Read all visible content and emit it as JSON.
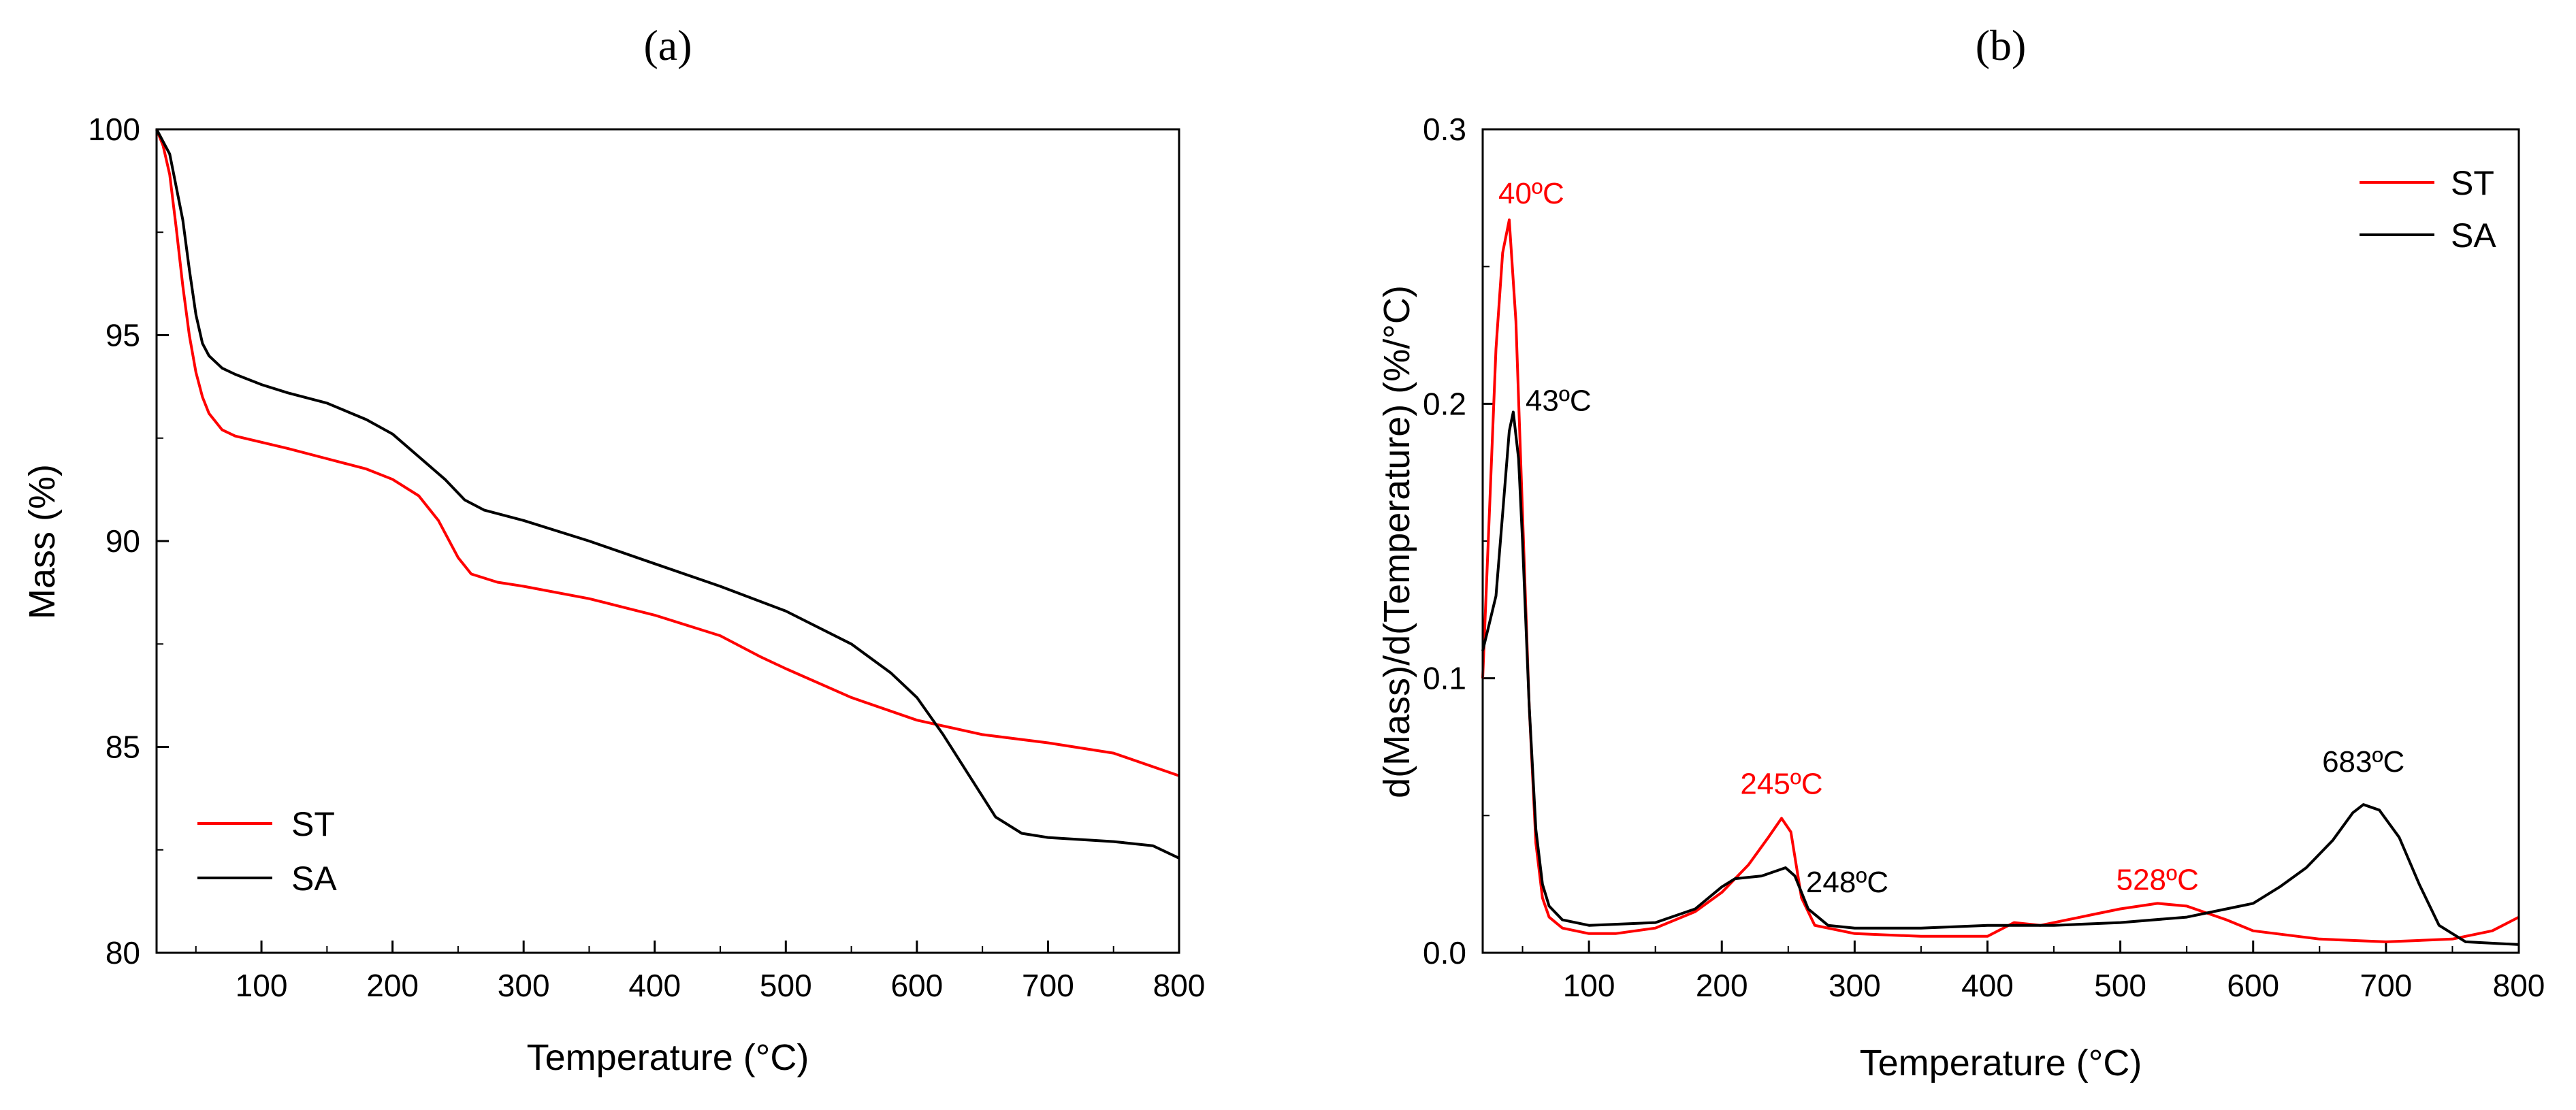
{
  "colors": {
    "ST": "#ff0000",
    "SA": "#000000",
    "axis": "#000000"
  },
  "chart_data": [
    {
      "id": "a",
      "panel_label": "(a)",
      "type": "line",
      "title": "",
      "xlabel": "Temperature (°C)",
      "ylabel": "Mass (%)",
      "xlim": [
        20,
        800
      ],
      "ylim": [
        80,
        100
      ],
      "xticks": [
        100,
        200,
        300,
        400,
        500,
        600,
        700,
        800
      ],
      "yticks": [
        80,
        85,
        90,
        95,
        100
      ],
      "legend_position": "bottom-left",
      "series": [
        {
          "name": "ST",
          "color": "#ff0000",
          "points": [
            [
              20,
              100
            ],
            [
              25,
              99.6
            ],
            [
              30,
              98.9
            ],
            [
              35,
              97.6
            ],
            [
              40,
              96.2
            ],
            [
              45,
              95
            ],
            [
              50,
              94.1
            ],
            [
              55,
              93.5
            ],
            [
              60,
              93.1
            ],
            [
              70,
              92.7
            ],
            [
              80,
              92.55
            ],
            [
              100,
              92.4
            ],
            [
              120,
              92.25
            ],
            [
              150,
              92
            ],
            [
              180,
              91.75
            ],
            [
              200,
              91.5
            ],
            [
              220,
              91.1
            ],
            [
              235,
              90.5
            ],
            [
              250,
              89.6
            ],
            [
              260,
              89.2
            ],
            [
              280,
              89
            ],
            [
              300,
              88.9
            ],
            [
              350,
              88.6
            ],
            [
              400,
              88.2
            ],
            [
              450,
              87.7
            ],
            [
              480,
              87.2
            ],
            [
              500,
              86.9
            ],
            [
              550,
              86.2
            ],
            [
              600,
              85.65
            ],
            [
              650,
              85.3
            ],
            [
              700,
              85.1
            ],
            [
              750,
              84.85
            ],
            [
              800,
              84.3
            ]
          ]
        },
        {
          "name": "SA",
          "color": "#000000",
          "points": [
            [
              20,
              100
            ],
            [
              30,
              99.4
            ],
            [
              40,
              97.8
            ],
            [
              45,
              96.6
            ],
            [
              50,
              95.5
            ],
            [
              55,
              94.8
            ],
            [
              60,
              94.5
            ],
            [
              70,
              94.2
            ],
            [
              80,
              94.05
            ],
            [
              100,
              93.8
            ],
            [
              120,
              93.6
            ],
            [
              150,
              93.35
            ],
            [
              180,
              92.95
            ],
            [
              200,
              92.6
            ],
            [
              220,
              92.05
            ],
            [
              240,
              91.5
            ],
            [
              255,
              91
            ],
            [
              270,
              90.75
            ],
            [
              300,
              90.5
            ],
            [
              350,
              90
            ],
            [
              400,
              89.45
            ],
            [
              450,
              88.9
            ],
            [
              500,
              88.3
            ],
            [
              550,
              87.5
            ],
            [
              580,
              86.8
            ],
            [
              600,
              86.2
            ],
            [
              620,
              85.3
            ],
            [
              640,
              84.3
            ],
            [
              660,
              83.3
            ],
            [
              680,
              82.9
            ],
            [
              700,
              82.8
            ],
            [
              750,
              82.7
            ],
            [
              780,
              82.6
            ],
            [
              800,
              82.3
            ]
          ]
        }
      ]
    },
    {
      "id": "b",
      "panel_label": "(b)",
      "type": "line",
      "title": "",
      "xlabel": "Temperature (°C)",
      "ylabel": "d(Mass)/d(Temperature) (%/°C)",
      "xlim": [
        20,
        800
      ],
      "ylim": [
        0,
        0.3
      ],
      "xticks": [
        100,
        200,
        300,
        400,
        500,
        600,
        700,
        800
      ],
      "yticks": [
        0.0,
        0.1,
        0.2,
        0.3
      ],
      "ytick_labels": [
        "0.0",
        "0.1",
        "0.2",
        "0.3"
      ],
      "legend_position": "top-right",
      "series": [
        {
          "name": "ST",
          "color": "#ff0000",
          "points": [
            [
              20,
              0.1
            ],
            [
              25,
              0.16
            ],
            [
              30,
              0.22
            ],
            [
              35,
              0.255
            ],
            [
              40,
              0.267
            ],
            [
              45,
              0.23
            ],
            [
              50,
              0.16
            ],
            [
              55,
              0.09
            ],
            [
              60,
              0.04
            ],
            [
              65,
              0.02
            ],
            [
              70,
              0.013
            ],
            [
              80,
              0.009
            ],
            [
              100,
              0.007
            ],
            [
              120,
              0.007
            ],
            [
              150,
              0.009
            ],
            [
              180,
              0.015
            ],
            [
              200,
              0.022
            ],
            [
              220,
              0.032
            ],
            [
              235,
              0.042
            ],
            [
              245,
              0.049
            ],
            [
              252,
              0.044
            ],
            [
              260,
              0.02
            ],
            [
              270,
              0.01
            ],
            [
              300,
              0.007
            ],
            [
              350,
              0.006
            ],
            [
              400,
              0.006
            ],
            [
              420,
              0.011
            ],
            [
              440,
              0.01
            ],
            [
              460,
              0.012
            ],
            [
              480,
              0.014
            ],
            [
              500,
              0.016
            ],
            [
              528,
              0.018
            ],
            [
              550,
              0.017
            ],
            [
              580,
              0.012
            ],
            [
              600,
              0.008
            ],
            [
              650,
              0.005
            ],
            [
              700,
              0.004
            ],
            [
              750,
              0.005
            ],
            [
              780,
              0.008
            ],
            [
              800,
              0.013
            ]
          ]
        },
        {
          "name": "SA",
          "color": "#000000",
          "points": [
            [
              20,
              0.11
            ],
            [
              25,
              0.12
            ],
            [
              30,
              0.13
            ],
            [
              35,
              0.16
            ],
            [
              40,
              0.19
            ],
            [
              43,
              0.197
            ],
            [
              47,
              0.18
            ],
            [
              50,
              0.15
            ],
            [
              55,
              0.09
            ],
            [
              60,
              0.045
            ],
            [
              65,
              0.025
            ],
            [
              70,
              0.017
            ],
            [
              80,
              0.012
            ],
            [
              100,
              0.01
            ],
            [
              150,
              0.011
            ],
            [
              180,
              0.016
            ],
            [
              200,
              0.024
            ],
            [
              210,
              0.027
            ],
            [
              230,
              0.028
            ],
            [
              248,
              0.031
            ],
            [
              255,
              0.028
            ],
            [
              265,
              0.016
            ],
            [
              280,
              0.01
            ],
            [
              300,
              0.009
            ],
            [
              350,
              0.009
            ],
            [
              400,
              0.01
            ],
            [
              450,
              0.01
            ],
            [
              500,
              0.011
            ],
            [
              550,
              0.013
            ],
            [
              580,
              0.016
            ],
            [
              600,
              0.018
            ],
            [
              620,
              0.024
            ],
            [
              640,
              0.031
            ],
            [
              660,
              0.041
            ],
            [
              675,
              0.051
            ],
            [
              683,
              0.054
            ],
            [
              695,
              0.052
            ],
            [
              710,
              0.042
            ],
            [
              725,
              0.025
            ],
            [
              740,
              0.01
            ],
            [
              760,
              0.004
            ],
            [
              800,
              0.003
            ]
          ]
        }
      ],
      "annotations": [
        {
          "text": "40ºC",
          "x": 40,
          "y": 0.267,
          "color": "#ff0000"
        },
        {
          "text": "43ºC",
          "x": 43,
          "y": 0.197,
          "color": "#000000"
        },
        {
          "text": "245ºC",
          "x": 245,
          "y": 0.049,
          "color": "#ff0000"
        },
        {
          "text": "248ºC",
          "x": 248,
          "y": 0.031,
          "color": "#000000"
        },
        {
          "text": "528ºC",
          "x": 528,
          "y": 0.018,
          "color": "#ff0000"
        },
        {
          "text": "683ºC",
          "x": 683,
          "y": 0.054,
          "color": "#000000"
        }
      ]
    }
  ]
}
